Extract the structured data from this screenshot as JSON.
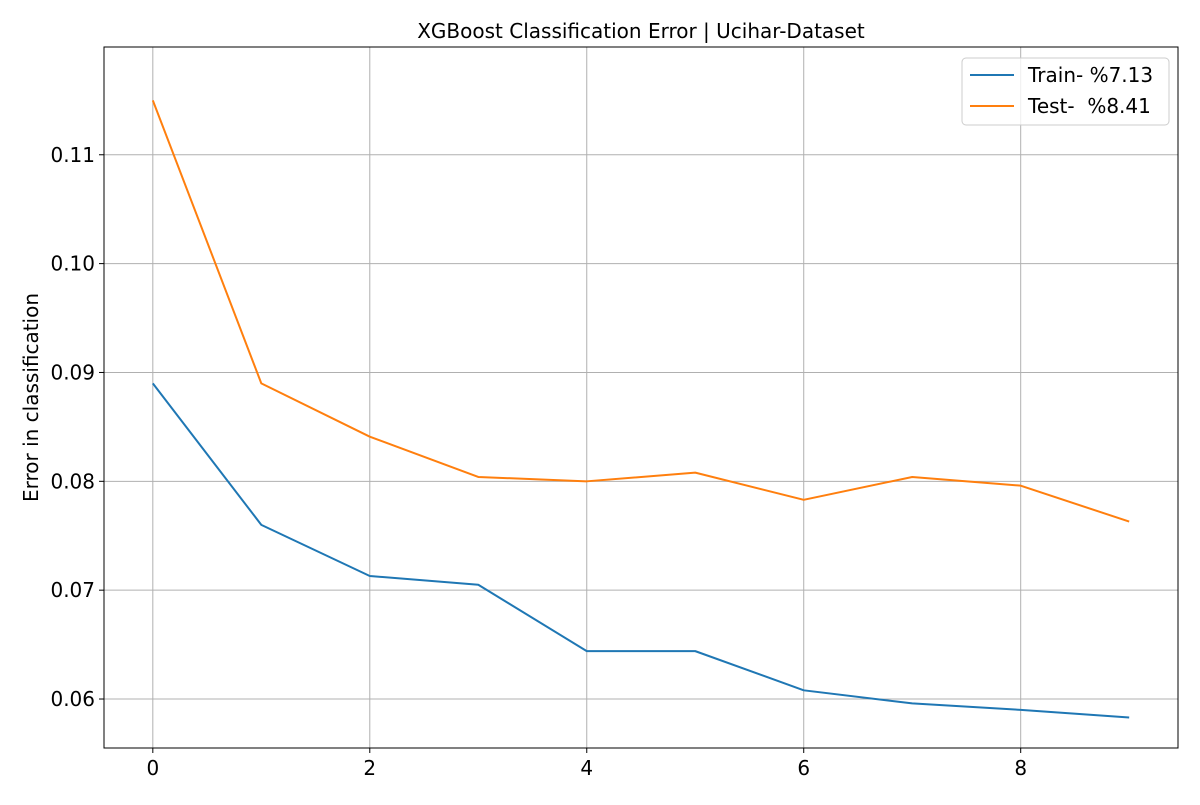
{
  "chart_data": {
    "type": "line",
    "title": "XGBoost Classification Error | Ucihar-Dataset",
    "xlabel": "",
    "ylabel": "Error in classification",
    "x": [
      0,
      1,
      2,
      3,
      4,
      5,
      6,
      7,
      8,
      9
    ],
    "xlim": [
      -0.45,
      9.45
    ],
    "ylim": [
      0.0555,
      0.1199
    ],
    "xticks": [
      0,
      2,
      4,
      6,
      8
    ],
    "yticks": [
      0.06,
      0.07,
      0.08,
      0.09,
      0.1,
      0.11
    ],
    "xtick_labels": [
      "0",
      "2",
      "4",
      "6",
      "8"
    ],
    "ytick_labels": [
      "0.06",
      "0.07",
      "0.08",
      "0.09",
      "0.10",
      "0.11"
    ],
    "grid": true,
    "legend_position": "top-right",
    "series": [
      {
        "name": "Train- %7.13",
        "color": "#1f77b4",
        "values": [
          0.089,
          0.076,
          0.0713,
          0.0705,
          0.0644,
          0.0644,
          0.0608,
          0.0596,
          0.059,
          0.0583
        ]
      },
      {
        "name": "Test-  %8.41",
        "color": "#ff7f0e",
        "values": [
          0.115,
          0.089,
          0.0841,
          0.0804,
          0.08,
          0.0808,
          0.0783,
          0.0804,
          0.0796,
          0.0763
        ]
      }
    ]
  }
}
